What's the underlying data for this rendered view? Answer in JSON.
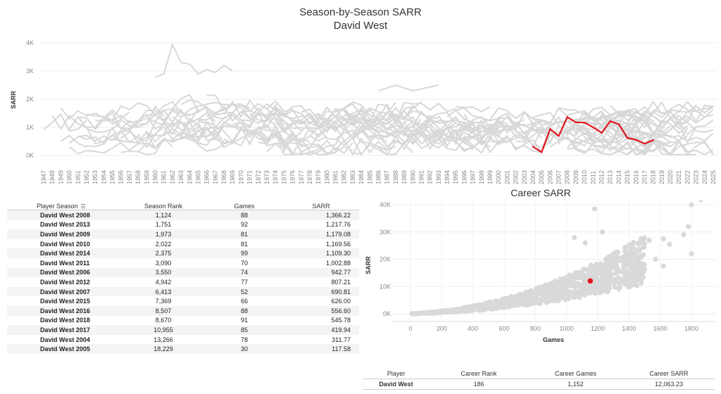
{
  "titles": {
    "main": "Season-by-Season SARR",
    "sub": "David West",
    "career": "Career SARR"
  },
  "colors": {
    "highlight": "#e0161c",
    "background_lines": "#d8d8d8",
    "dots": "#d9d9d9"
  },
  "chart_data": [
    {
      "type": "line",
      "title": "Season-by-Season SARR",
      "subtitle": "David West",
      "ylabel": "SARR",
      "xlabel": "",
      "x_range": [
        1947,
        2025
      ],
      "ylim": [
        0,
        4000
      ],
      "y_ticks": [
        "0K",
        "1K",
        "2K",
        "3K",
        "4K"
      ],
      "x_ticks": [
        "1947",
        "1948",
        "1949",
        "1950",
        "1951",
        "1952",
        "1953",
        "1954",
        "1955",
        "1956",
        "1957",
        "1958",
        "1959",
        "1960",
        "1961",
        "1962",
        "1963",
        "1964",
        "1965",
        "1966",
        "1967",
        "1968",
        "1969",
        "1970",
        "1971",
        "1972",
        "1973",
        "1974",
        "1975",
        "1976",
        "1977",
        "1978",
        "1979",
        "1980",
        "1981",
        "1982",
        "1983",
        "1984",
        "1985",
        "1986",
        "1987",
        "1988",
        "1989",
        "1990",
        "1991",
        "1992",
        "1993",
        "1994",
        "1995",
        "1996",
        "1997",
        "1998",
        "1999",
        "2000",
        "2001",
        "2002",
        "2003",
        "2004",
        "2005",
        "2006",
        "2007",
        "2008",
        "2009",
        "2010",
        "2011",
        "2012",
        "2013",
        "2014",
        "2015",
        "2016",
        "2017",
        "2018",
        "2019",
        "2020",
        "2021",
        "2022",
        "2023",
        "2024",
        "2025"
      ],
      "grid": true,
      "series": [
        {
          "name": "David West",
          "x": [
            2004,
            2005,
            2006,
            2007,
            2008,
            2009,
            2010,
            2011,
            2012,
            2013,
            2014,
            2015,
            2016,
            2017,
            2018
          ],
          "values": [
            311.77,
            117.58,
            942.77,
            690.81,
            1366.22,
            1179.08,
            1169.56,
            1002.88,
            807.21,
            1217.76,
            1109.3,
            626.0,
            556.6,
            419.94,
            545.78
          ]
        }
      ]
    },
    {
      "type": "scatter",
      "title": "Career SARR",
      "xlabel": "Games",
      "ylabel": "SARR",
      "xlim": [
        -50,
        1900
      ],
      "ylim": [
        -1500,
        43000
      ],
      "x_ticks": [
        "0",
        "200",
        "400",
        "600",
        "800",
        "1000",
        "1200",
        "1400",
        "1600",
        "1800"
      ],
      "y_ticks": [
        "0K",
        "10K",
        "20K",
        "30K",
        "40K"
      ],
      "grid": true,
      "highlight": {
        "name": "David West",
        "x": 1152,
        "y": 12063.23
      }
    }
  ],
  "season_table": {
    "headers": [
      "Player Season",
      "Season Rank",
      "Games",
      "SARR"
    ],
    "rows": [
      [
        "David West 2008",
        "1,124",
        "88",
        "1,366.22"
      ],
      [
        "David West 2013",
        "1,751",
        "92",
        "1,217.76"
      ],
      [
        "David West 2009",
        "1,973",
        "81",
        "1,179.08"
      ],
      [
        "David West 2010",
        "2,022",
        "81",
        "1,169.56"
      ],
      [
        "David West 2014",
        "2,375",
        "99",
        "1,109.30"
      ],
      [
        "David West 2011",
        "3,090",
        "70",
        "1,002.88"
      ],
      [
        "David West 2006",
        "3,550",
        "74",
        "942.77"
      ],
      [
        "David West 2012",
        "4,942",
        "77",
        "807.21"
      ],
      [
        "David West 2007",
        "6,413",
        "52",
        "690.81"
      ],
      [
        "David West 2015",
        "7,369",
        "66",
        "626.00"
      ],
      [
        "David West 2016",
        "8,507",
        "88",
        "556.60"
      ],
      [
        "David West 2018",
        "8,670",
        "91",
        "545.78"
      ],
      [
        "David West 2017",
        "10,955",
        "85",
        "419.94"
      ],
      [
        "David West 2004",
        "13,266",
        "78",
        "311.77"
      ],
      [
        "David West 2005",
        "18,229",
        "30",
        "117.58"
      ]
    ]
  },
  "career_table": {
    "headers": [
      "Player",
      "Career Rank",
      "Career Games",
      "Career SARR"
    ],
    "row": [
      "David West",
      "186",
      "1,152",
      "12,063.23"
    ]
  },
  "icons": {
    "sort": "sort-icon"
  }
}
